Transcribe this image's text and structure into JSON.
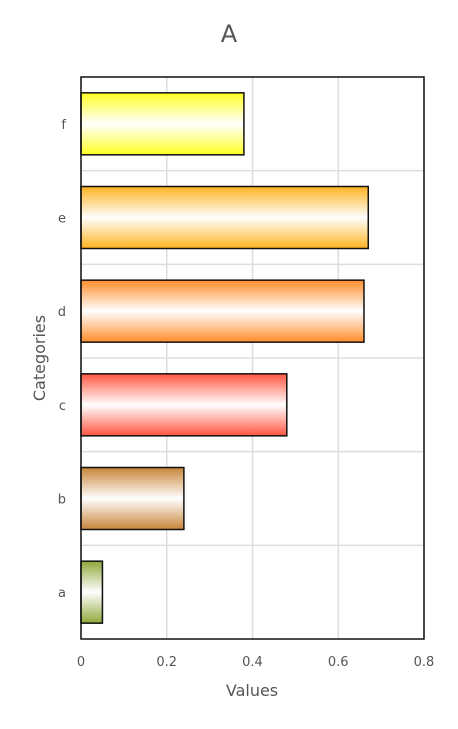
{
  "chart_data": {
    "type": "bar",
    "orientation": "horizontal",
    "title": "A",
    "xlabel": "Values",
    "ylabel": "Categories",
    "categories": [
      "a",
      "b",
      "c",
      "d",
      "e",
      "f"
    ],
    "values": [
      0.05,
      0.24,
      0.48,
      0.66,
      0.67,
      0.38
    ],
    "xlim": [
      0,
      0.8
    ],
    "xticks": [
      "0",
      "0.2",
      "0.4",
      "0.6",
      "0.8"
    ],
    "grid": true,
    "colors": [
      "#8fa83a",
      "#c8843a",
      "#ff5540",
      "#ff8c2a",
      "#ffb320",
      "#ffff20"
    ]
  }
}
